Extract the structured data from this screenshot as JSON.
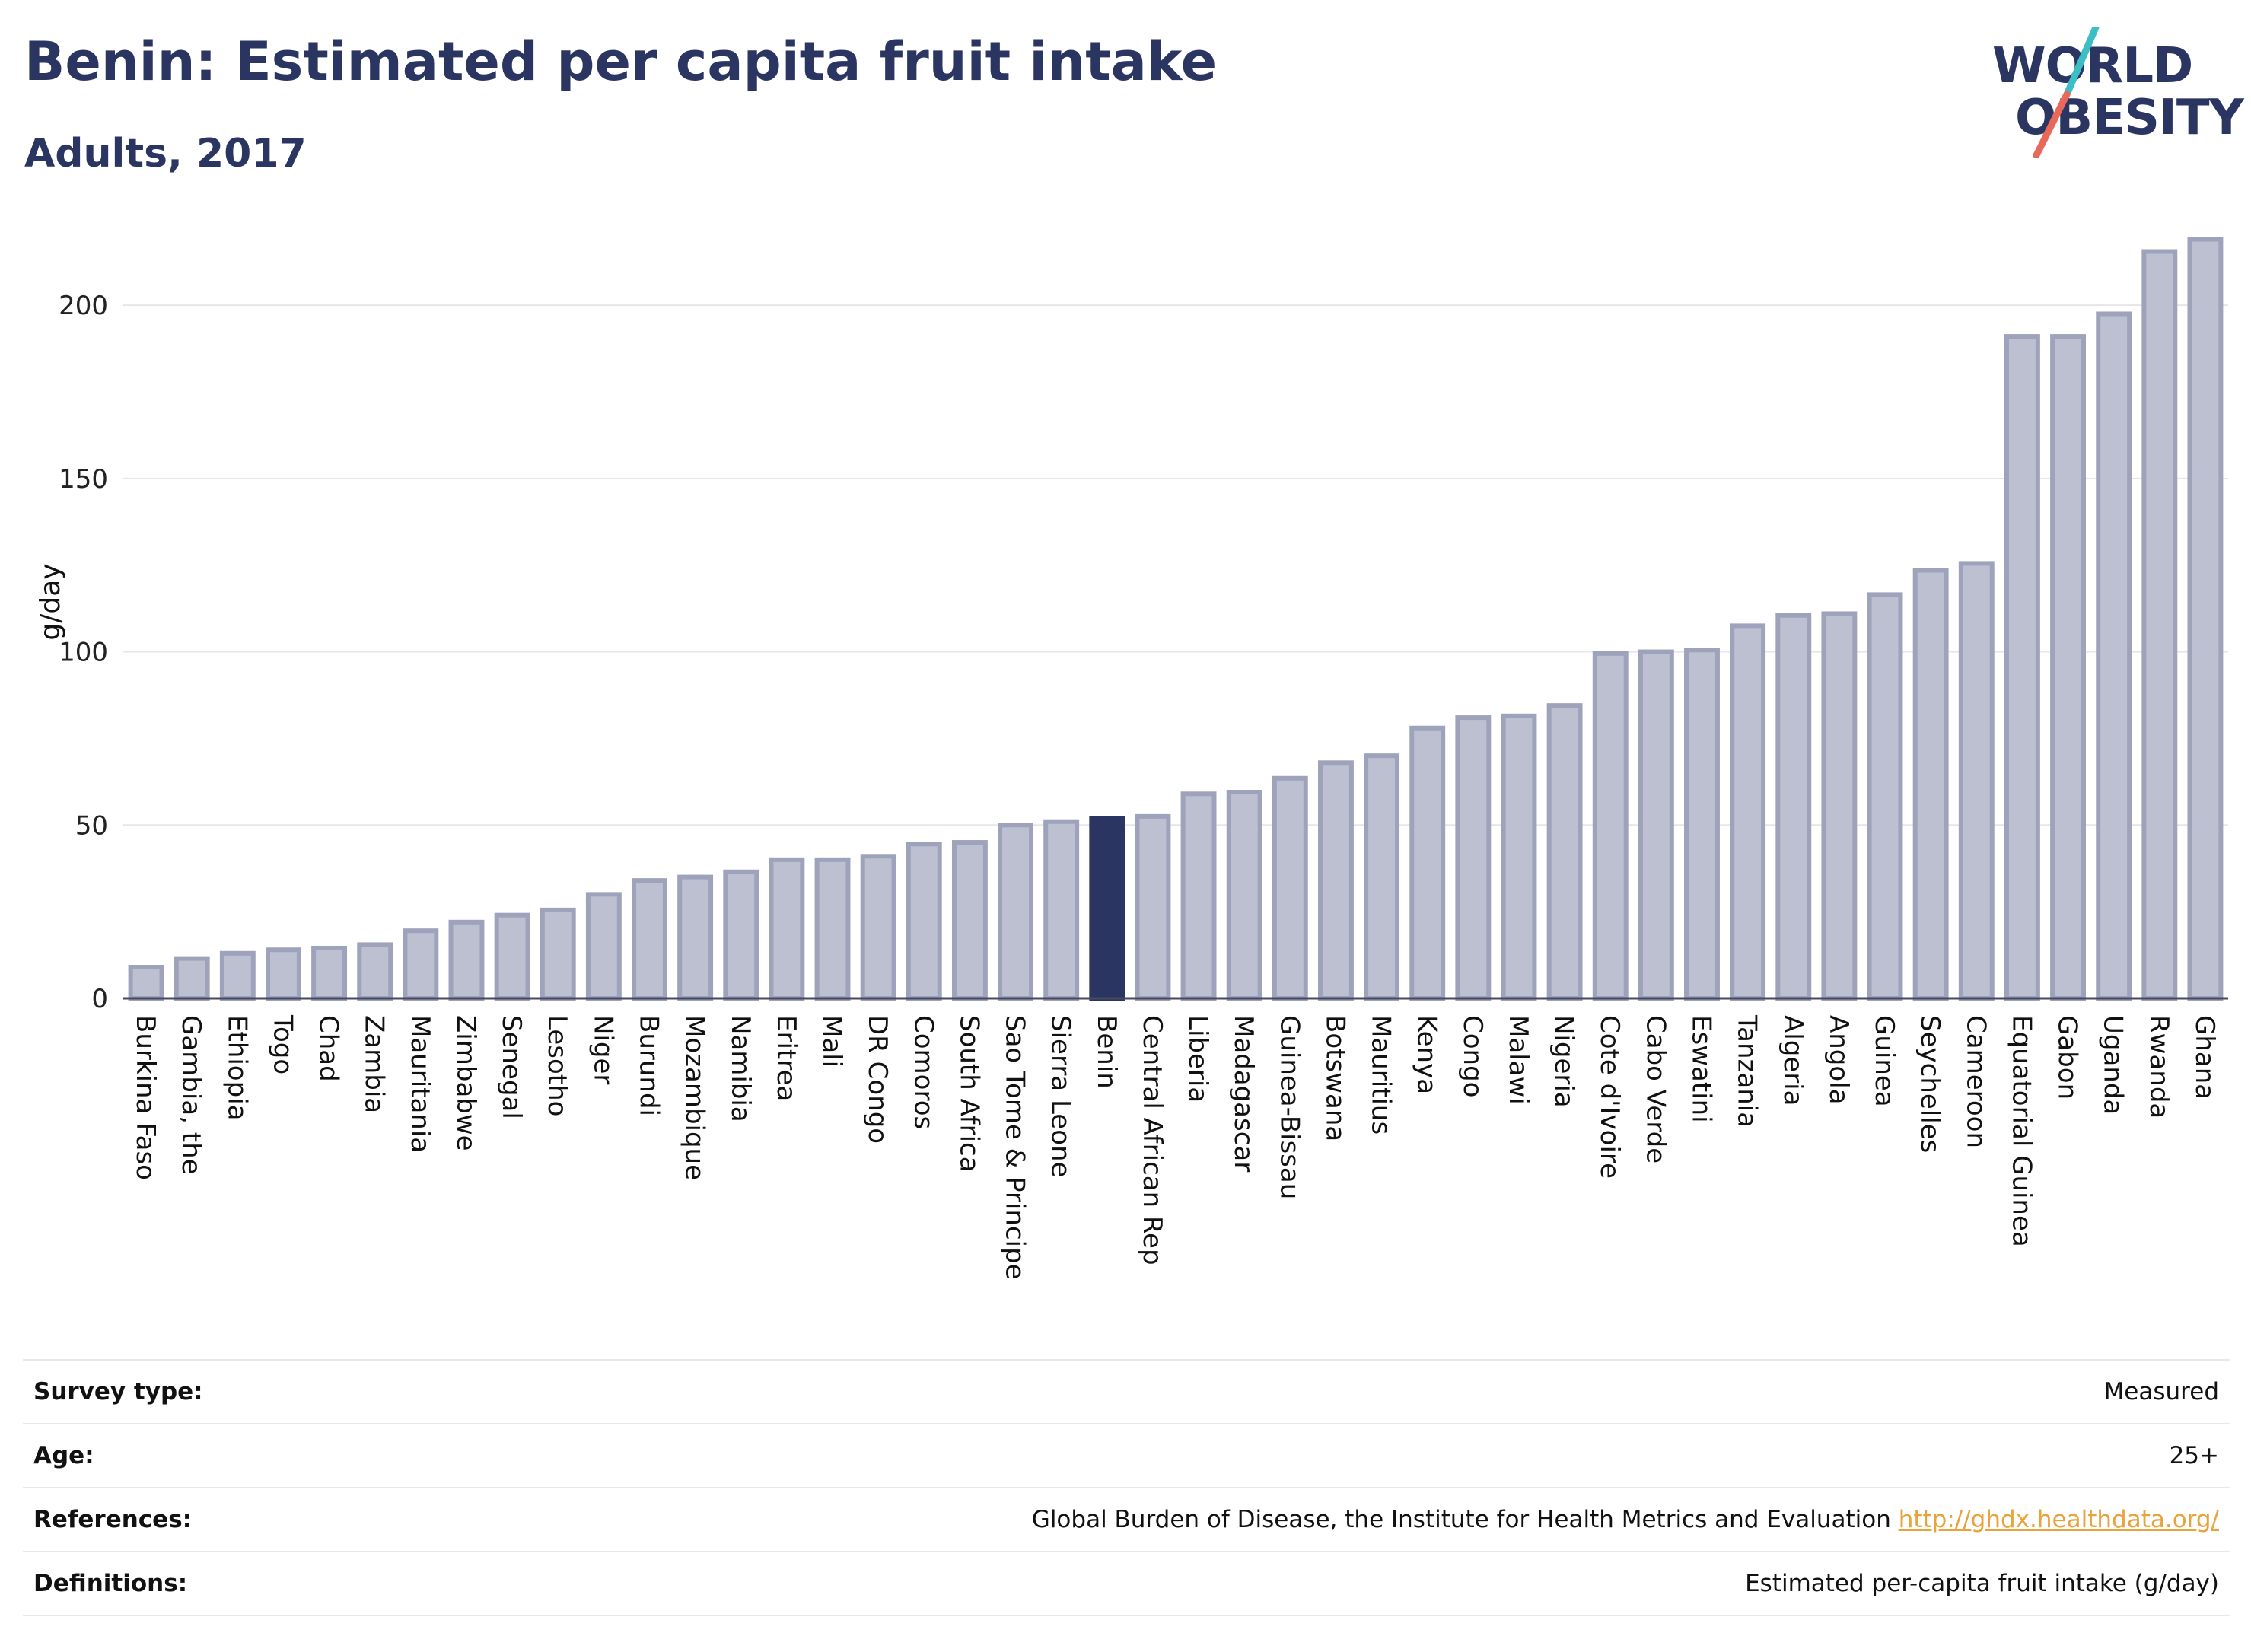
{
  "header": {
    "title": "Benin: Estimated per capita fruit intake",
    "subtitle": "Adults, 2017"
  },
  "logo": {
    "line1": "WORLD",
    "line2": "OBESITY",
    "slash_colors": [
      "#3bbfc4",
      "#e8695a"
    ]
  },
  "chart_data": {
    "type": "bar",
    "ylabel": "g/day",
    "ylim": [
      0,
      220
    ],
    "yticks": [
      0,
      50,
      100,
      150,
      200
    ],
    "grid": true,
    "highlight": "Benin",
    "colors": {
      "bar": "#bcc0d1",
      "bar_border": "#9ea3bb",
      "highlight": "#2b3561",
      "grid": "#e6e6ea",
      "axis": "#444a60"
    },
    "categories": [
      "Burkina Faso",
      "Gambia, the",
      "Ethiopia",
      "Togo",
      "Chad",
      "Zambia",
      "Mauritania",
      "Zimbabwe",
      "Senegal",
      "Lesotho",
      "Niger",
      "Burundi",
      "Mozambique",
      "Namibia",
      "Eritrea",
      "Mali",
      "DR Congo",
      "Comoros",
      "South Africa",
      "Sao Tome & Principe",
      "Sierra Leone",
      "Benin",
      "Central African Rep",
      "Liberia",
      "Madagascar",
      "Guinea-Bissau",
      "Botswana",
      "Mauritius",
      "Kenya",
      "Congo",
      "Malawi",
      "Nigeria",
      "Cote d'Ivoire",
      "Cabo Verde",
      "Eswatini",
      "Tanzania",
      "Algeria",
      "Angola",
      "Guinea",
      "Seychelles",
      "Cameroon",
      "Equatorial Guinea",
      "Gabon",
      "Uganda",
      "Rwanda",
      "Ghana"
    ],
    "values": [
      9,
      11.5,
      13,
      14,
      14.5,
      15.5,
      19.5,
      22,
      24,
      25.5,
      30,
      34,
      35,
      36.5,
      40,
      40,
      41,
      44.5,
      45,
      50,
      51,
      52,
      52.5,
      59,
      59.5,
      63.5,
      68,
      70,
      78,
      81,
      81.5,
      84.5,
      99.5,
      100,
      100.5,
      107.5,
      110.5,
      111,
      116.5,
      123.5,
      125.5,
      191,
      191,
      197.5,
      215.5,
      219
    ]
  },
  "info": {
    "rows": [
      {
        "key": "Survey type:",
        "value": "Measured"
      },
      {
        "key": "Age:",
        "value": "25+"
      },
      {
        "key": "References:",
        "value": "Global Burden of Disease, the Institute for Health Metrics and Evaluation",
        "link": "http://ghdx.healthdata.org/"
      },
      {
        "key": "Definitions:",
        "value": "Estimated per-capita fruit intake (g/day)"
      }
    ]
  }
}
